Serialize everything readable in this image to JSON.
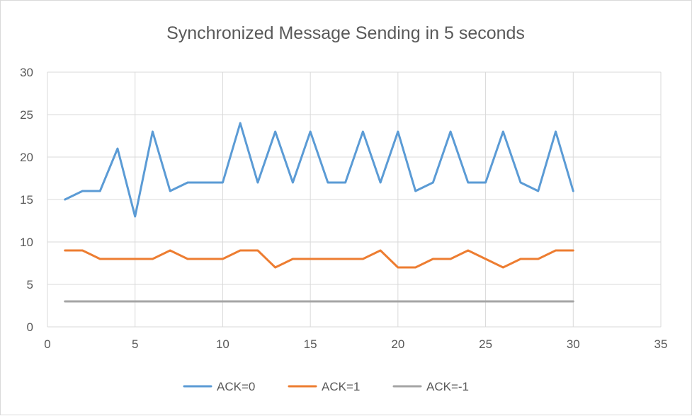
{
  "chart_data": {
    "type": "line",
    "title": "Synchronized  Message Sending in 5 seconds",
    "xlim": [
      0,
      35
    ],
    "ylim": [
      0,
      30
    ],
    "x_ticks": [
      0,
      5,
      10,
      15,
      20,
      25,
      30,
      35
    ],
    "y_ticks": [
      0,
      5,
      10,
      15,
      20,
      25,
      30
    ],
    "grid": true,
    "legend_position": "bottom",
    "x": [
      1,
      2,
      3,
      4,
      5,
      6,
      7,
      8,
      9,
      10,
      11,
      12,
      13,
      14,
      15,
      16,
      17,
      18,
      19,
      20,
      21,
      22,
      23,
      24,
      25,
      26,
      27,
      28,
      29,
      30
    ],
    "series": [
      {
        "name": "ACK=0",
        "color": "#5b9bd5",
        "values": [
          15,
          16,
          16,
          21,
          13,
          23,
          16,
          17,
          17,
          17,
          24,
          17,
          23,
          17,
          23,
          17,
          17,
          23,
          17,
          23,
          16,
          17,
          23,
          17,
          17,
          23,
          17,
          16,
          23,
          16
        ]
      },
      {
        "name": "ACK=1",
        "color": "#ed7d31",
        "values": [
          9,
          9,
          8,
          8,
          8,
          8,
          9,
          8,
          8,
          8,
          9,
          9,
          7,
          8,
          8,
          8,
          8,
          8,
          9,
          7,
          7,
          8,
          8,
          9,
          8,
          7,
          8,
          8,
          9,
          9
        ]
      },
      {
        "name": "ACK=-1",
        "color": "#a5a5a5",
        "values": [
          3,
          3,
          3,
          3,
          3,
          3,
          3,
          3,
          3,
          3,
          3,
          3,
          3,
          3,
          3,
          3,
          3,
          3,
          3,
          3,
          3,
          3,
          3,
          3,
          3,
          3,
          3,
          3,
          3,
          3
        ]
      }
    ]
  }
}
